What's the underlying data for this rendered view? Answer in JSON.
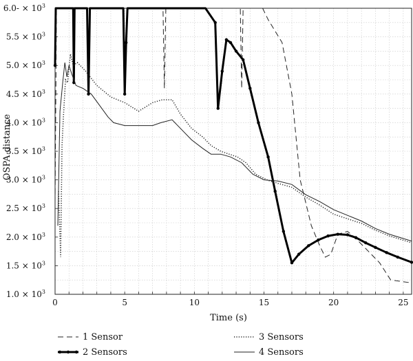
{
  "chart_data": {
    "type": "line",
    "title": "",
    "xlabel": "Time (s)",
    "ylabel": "OSPA distance",
    "xlim": [
      0,
      25.6
    ],
    "ylim": [
      1000,
      6000
    ],
    "grid": true,
    "legend_position": "bottom",
    "x_ticks": [
      0,
      5,
      10,
      15,
      20,
      25
    ],
    "y_ticks": [
      {
        "value": 1000,
        "label": "1.0 × 10"
      },
      {
        "value": 1500,
        "label": "1.5 × 10"
      },
      {
        "value": 2000,
        "label": "2.0 × 10"
      },
      {
        "value": 2500,
        "label": "2.5 × 10"
      },
      {
        "value": 3000,
        "label": "3.0 × 10"
      },
      {
        "value": 3500,
        "label": "3.5 × 10"
      },
      {
        "value": 4000,
        "label": "4.0 × 10"
      },
      {
        "value": 4500,
        "label": "4.5 × 10"
      },
      {
        "value": 5000,
        "label": "5.0 × 10"
      },
      {
        "value": 5500,
        "label": "5.5 × 10"
      },
      {
        "value": 6000,
        "label": "6.0- × 10"
      }
    ],
    "y_tick_exponent": "3",
    "series": [
      {
        "name": "1 Sensor",
        "style": "dashed",
        "points": [
          [
            0,
            2600
          ],
          [
            0.1,
            6000
          ],
          [
            7.75,
            6000
          ],
          [
            7.85,
            4600
          ],
          [
            7.95,
            6000
          ],
          [
            13.3,
            6000
          ],
          [
            13.4,
            4600
          ],
          [
            13.5,
            6000
          ],
          [
            14.9,
            6000
          ],
          [
            15.3,
            5800
          ],
          [
            16.3,
            5400
          ],
          [
            17.0,
            4500
          ],
          [
            17.6,
            3000
          ],
          [
            18.4,
            2200
          ],
          [
            19.0,
            1850
          ],
          [
            19.4,
            1650
          ],
          [
            19.8,
            1700
          ],
          [
            20.3,
            2050
          ],
          [
            21.0,
            2100
          ],
          [
            21.5,
            2000
          ],
          [
            22.3,
            1800
          ],
          [
            23.3,
            1550
          ],
          [
            24.1,
            1250
          ],
          [
            25.6,
            1200
          ]
        ]
      },
      {
        "name": "2 Sensors",
        "style": "bold-markers",
        "points": [
          [
            0,
            5000
          ],
          [
            0.05,
            6000
          ],
          [
            1.3,
            6000
          ],
          [
            1.35,
            4700
          ],
          [
            1.4,
            6000
          ],
          [
            2.3,
            6000
          ],
          [
            2.4,
            4500
          ],
          [
            2.5,
            6000
          ],
          [
            4.9,
            6000
          ],
          [
            5.0,
            4500
          ],
          [
            5.1,
            5400
          ],
          [
            5.2,
            6000
          ],
          [
            10.8,
            6000
          ],
          [
            11.5,
            5750
          ],
          [
            11.7,
            4250
          ],
          [
            12.0,
            4900
          ],
          [
            12.3,
            5450
          ],
          [
            12.6,
            5400
          ],
          [
            13.0,
            5250
          ],
          [
            13.5,
            5100
          ],
          [
            14.0,
            4600
          ],
          [
            14.6,
            4000
          ],
          [
            15.3,
            3400
          ],
          [
            15.8,
            2800
          ],
          [
            16.4,
            2100
          ],
          [
            17.0,
            1550
          ],
          [
            17.5,
            1700
          ],
          [
            18.2,
            1850
          ],
          [
            18.9,
            1950
          ],
          [
            19.6,
            2020
          ],
          [
            20.3,
            2050
          ],
          [
            21.0,
            2040
          ],
          [
            21.6,
            1990
          ],
          [
            22.3,
            1900
          ],
          [
            23.0,
            1820
          ],
          [
            23.8,
            1730
          ],
          [
            24.6,
            1650
          ],
          [
            25.6,
            1560
          ]
        ]
      },
      {
        "name": "3 Sensors",
        "style": "dotted",
        "points": [
          [
            0.25,
            2800
          ],
          [
            0.4,
            1650
          ],
          [
            0.5,
            3600
          ],
          [
            0.6,
            4100
          ],
          [
            0.75,
            4750
          ],
          [
            0.9,
            4700
          ],
          [
            1.1,
            5200
          ],
          [
            1.3,
            5000
          ],
          [
            1.6,
            5050
          ],
          [
            2.2,
            4900
          ],
          [
            3.0,
            4650
          ],
          [
            4.0,
            4450
          ],
          [
            5.0,
            4350
          ],
          [
            6.0,
            4200
          ],
          [
            7.0,
            4350
          ],
          [
            7.7,
            4400
          ],
          [
            8.4,
            4400
          ],
          [
            9.0,
            4150
          ],
          [
            9.8,
            3900
          ],
          [
            10.6,
            3750
          ],
          [
            11.2,
            3600
          ],
          [
            11.9,
            3500
          ],
          [
            12.5,
            3450
          ],
          [
            13.1,
            3400
          ],
          [
            13.7,
            3300
          ],
          [
            14.4,
            3100
          ],
          [
            15.3,
            2990
          ],
          [
            16.0,
            2940
          ],
          [
            17.0,
            2870
          ],
          [
            18.0,
            2700
          ],
          [
            19.0,
            2560
          ],
          [
            20.0,
            2400
          ],
          [
            21.0,
            2320
          ],
          [
            22.0,
            2240
          ],
          [
            23.0,
            2120
          ],
          [
            24.0,
            2020
          ],
          [
            25.6,
            1900
          ]
        ]
      },
      {
        "name": "4 Sensors",
        "style": "solid",
        "points": [
          [
            0.2,
            2200
          ],
          [
            0.35,
            4200
          ],
          [
            0.55,
            4700
          ],
          [
            0.7,
            5050
          ],
          [
            0.85,
            4800
          ],
          [
            1.0,
            5000
          ],
          [
            1.2,
            4850
          ],
          [
            1.5,
            4650
          ],
          [
            2.0,
            4600
          ],
          [
            2.6,
            4500
          ],
          [
            3.2,
            4300
          ],
          [
            3.8,
            4100
          ],
          [
            4.2,
            4000
          ],
          [
            5.0,
            3950
          ],
          [
            6.0,
            3950
          ],
          [
            7.0,
            3950
          ],
          [
            7.6,
            4000
          ],
          [
            8.4,
            4050
          ],
          [
            9.0,
            3900
          ],
          [
            9.8,
            3700
          ],
          [
            10.6,
            3550
          ],
          [
            11.2,
            3450
          ],
          [
            11.9,
            3450
          ],
          [
            12.6,
            3400
          ],
          [
            13.4,
            3300
          ],
          [
            14.2,
            3100
          ],
          [
            15.0,
            3000
          ],
          [
            16.0,
            2980
          ],
          [
            17.0,
            2920
          ],
          [
            18.0,
            2740
          ],
          [
            19.0,
            2620
          ],
          [
            20.0,
            2480
          ],
          [
            21.0,
            2380
          ],
          [
            22.0,
            2280
          ],
          [
            23.0,
            2150
          ],
          [
            24.0,
            2050
          ],
          [
            25.6,
            1930
          ]
        ]
      }
    ]
  }
}
